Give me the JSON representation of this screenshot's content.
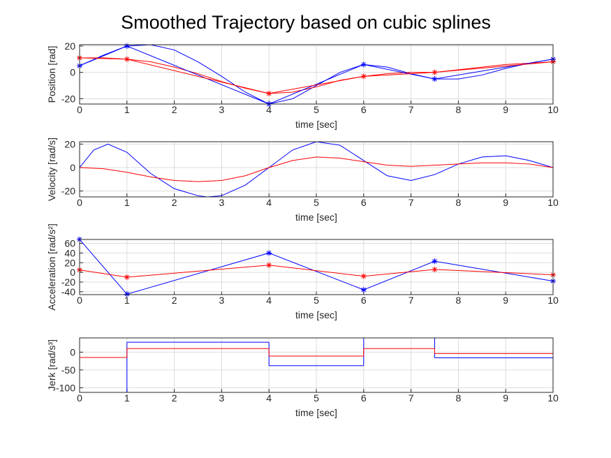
{
  "chart_data": [
    {
      "type": "line",
      "title": "Smoothed Trajectory based on cubic splines",
      "xlabel": "time [sec]",
      "ylabel": "Position [rad]",
      "xlim": [
        0,
        10
      ],
      "xticks": [
        0,
        1,
        2,
        3,
        4,
        5,
        6,
        7,
        8,
        9,
        10
      ],
      "ylim": [
        -24,
        21
      ],
      "yticks": [
        -20,
        0,
        20
      ],
      "grid": true,
      "series": [
        {
          "color": "#0000ff",
          "x": [
            0,
            0.5,
            1,
            1.5,
            2,
            2.5,
            3,
            3.5,
            4,
            4.5,
            5,
            5.5,
            6,
            6.5,
            7,
            7.5,
            8,
            8.5,
            9,
            9.5,
            10
          ],
          "values": [
            5,
            13,
            20,
            21,
            17,
            8,
            -3,
            -15,
            -24,
            -20,
            -10,
            0,
            6,
            4,
            -1,
            -5,
            -5,
            -2,
            3,
            7,
            10
          ]
        },
        {
          "color": "#ff0000",
          "x": [
            0,
            0.5,
            1,
            1.5,
            2,
            2.5,
            3,
            3.5,
            4,
            4.5,
            5,
            5.5,
            6,
            6.5,
            7,
            7.5,
            8,
            8.5,
            9,
            9.5,
            10
          ],
          "values": [
            11,
            11,
            10,
            8,
            4,
            -1,
            -7,
            -12,
            -16,
            -15,
            -11,
            -6,
            -3,
            -1,
            0,
            0,
            2,
            4,
            6,
            7,
            8
          ]
        },
        {
          "color": "#0000ff",
          "marker": "*",
          "x": [
            0,
            1,
            4,
            6,
            7.5,
            10
          ],
          "values": [
            5,
            20,
            -24,
            6,
            -5,
            10
          ]
        },
        {
          "color": "#ff0000",
          "marker": "*",
          "x": [
            0,
            1,
            4,
            6,
            7.5,
            10
          ],
          "values": [
            11,
            10,
            -16,
            -3,
            0,
            8
          ]
        }
      ]
    },
    {
      "type": "line",
      "xlabel": "time [sec]",
      "ylabel": "Velocity [rad/s]",
      "xlim": [
        0,
        10
      ],
      "xticks": [
        0,
        1,
        2,
        3,
        4,
        5,
        6,
        7,
        8,
        9,
        10
      ],
      "ylim": [
        -25,
        22
      ],
      "yticks": [
        -20,
        0,
        20
      ],
      "grid": true,
      "series": [
        {
          "color": "#0000ff",
          "x": [
            0,
            0.3,
            0.6,
            1,
            1.5,
            2,
            2.5,
            2.7,
            3,
            3.5,
            4,
            4.5,
            5,
            5.5,
            6,
            6.5,
            7,
            7.5,
            8,
            8.5,
            9,
            9.5,
            10
          ],
          "values": [
            0,
            15,
            20,
            13,
            -5,
            -18,
            -24,
            -25,
            -24,
            -15,
            0,
            15,
            22,
            19,
            6,
            -7,
            -11,
            -6,
            3,
            9,
            10,
            6,
            0
          ]
        },
        {
          "color": "#ff0000",
          "x": [
            0,
            0.5,
            1,
            1.5,
            2,
            2.5,
            3,
            3.5,
            4,
            4.5,
            5,
            5.5,
            6,
            6.5,
            7,
            7.5,
            8,
            8.5,
            9,
            9.5,
            10
          ],
          "values": [
            0,
            -1,
            -4,
            -8,
            -11,
            -12,
            -11,
            -7,
            0,
            6,
            9,
            8,
            5,
            2,
            1,
            2,
            3,
            4,
            4,
            3,
            0
          ]
        }
      ]
    },
    {
      "type": "line",
      "xlabel": "time [sec]",
      "ylabel": "Acceleration [rad/s²]",
      "xlim": [
        0,
        10
      ],
      "xticks": [
        0,
        1,
        2,
        3,
        4,
        5,
        6,
        7,
        8,
        9,
        10
      ],
      "ylim": [
        -46,
        68
      ],
      "yticks": [
        -40,
        -20,
        0,
        20,
        40,
        60
      ],
      "grid": true,
      "series": [
        {
          "color": "#0000ff",
          "marker": "*",
          "x": [
            0,
            1,
            4,
            6,
            7.5,
            10
          ],
          "values": [
            68,
            -45,
            40,
            -36,
            23,
            -18
          ]
        },
        {
          "color": "#ff0000",
          "marker": "*",
          "x": [
            0,
            1,
            4,
            6,
            7.5,
            10
          ],
          "values": [
            5,
            -10,
            15,
            -8,
            6,
            -5
          ]
        }
      ]
    },
    {
      "type": "step",
      "xlabel": "time [sec]",
      "ylabel": "Jerk [rad/s³]",
      "xlim": [
        0,
        10
      ],
      "xticks": [
        0,
        1,
        2,
        3,
        4,
        5,
        6,
        7,
        8,
        9,
        10
      ],
      "ylim": [
        -113,
        40
      ],
      "yticks": [
        -100,
        -50,
        0
      ],
      "grid": true,
      "series": [
        {
          "color": "#0000ff",
          "bins": [
            0,
            1,
            4,
            6,
            7.5,
            10
          ],
          "values": [
            -113,
            28,
            -38,
            40,
            -16
          ]
        },
        {
          "color": "#ff0000",
          "bins": [
            0,
            1,
            4,
            6,
            7.5,
            10
          ],
          "values": [
            -15,
            10,
            -11,
            10,
            -4
          ]
        }
      ]
    }
  ]
}
